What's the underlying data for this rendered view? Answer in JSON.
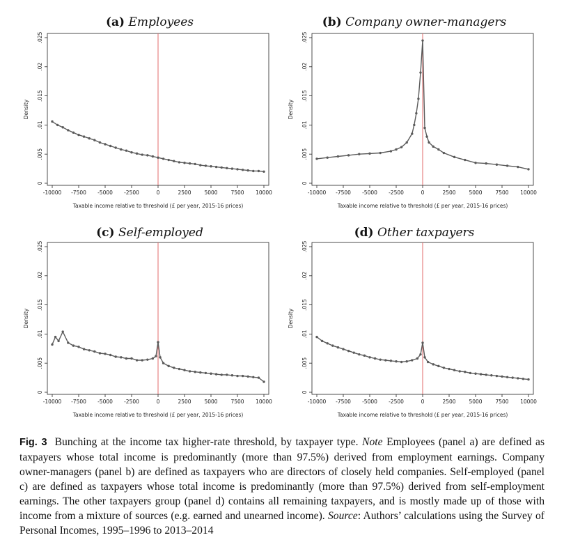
{
  "panels": [
    {
      "letter": "(a)",
      "name": "Employees"
    },
    {
      "letter": "(b)",
      "name": "Company owner-managers"
    },
    {
      "letter": "(c)",
      "name": "Self-employed"
    },
    {
      "letter": "(d)",
      "name": "Other taxpayers"
    }
  ],
  "caption": {
    "fig_label": "Fig. 3",
    "text1": "Bunching at the income tax higher-rate threshold, by taxpayer type.",
    "note_label": "Note",
    "text2": "Employees (panel a) are defined as taxpayers whose total income is predominantly (more than 97.5%) derived from employment earnings. Company owner-managers (panel b) are defined as taxpayers who are directors of closely held companies. Self-employed (panel c) are defined as taxpayers whose total income is predominantly (more than 97.5%) derived from self-employment earnings. The other taxpayers group (panel d) contains all remaining taxpayers, and is mostly made up of those with income from a mixture of sources (e.g. earned and unearned income).",
    "source_label": "Source",
    "text3": ": Authors’ calculations using the Survey of Personal Incomes, 1995–1996 to 2013–2014"
  },
  "colors": {
    "series": "#5a5a5a",
    "threshold": "#e06a6a",
    "frame": "#222222"
  },
  "chart_data": [
    {
      "type": "line",
      "title": "(a) Employees",
      "xlabel": "Taxable income relative to threshold (£ per year, 2015-16 prices)",
      "ylabel": "Density",
      "xlim": [
        -10000,
        10000
      ],
      "ylim": [
        0,
        0.025
      ],
      "xticks": [
        -10000,
        -7500,
        -5000,
        -2500,
        0,
        2500,
        5000,
        7500,
        10000
      ],
      "yticks": [
        0,
        0.005,
        0.01,
        0.015,
        0.02,
        0.025
      ],
      "ytick_labels": [
        "0",
        ".005",
        ".01",
        ".015",
        ".02",
        ".025"
      ],
      "threshold_x": 0,
      "series": [
        {
          "x": [
            -10000,
            -9500,
            -9000,
            -8500,
            -8000,
            -7500,
            -7000,
            -6500,
            -6000,
            -5500,
            -5000,
            -4500,
            -4000,
            -3500,
            -3000,
            -2500,
            -2000,
            -1500,
            -1000,
            -500,
            0,
            500,
            1000,
            1500,
            2000,
            2500,
            3000,
            3500,
            4000,
            4500,
            5000,
            5500,
            6000,
            6500,
            7000,
            7500,
            8000,
            8500,
            9000,
            9500,
            10000
          ],
          "y": [
            0.0106,
            0.01,
            0.0096,
            0.0091,
            0.0087,
            0.0083,
            0.008,
            0.0077,
            0.0074,
            0.007,
            0.0067,
            0.0064,
            0.0061,
            0.0058,
            0.0056,
            0.0053,
            0.0051,
            0.0049,
            0.0048,
            0.0046,
            0.0044,
            0.0042,
            0.004,
            0.0038,
            0.0036,
            0.0035,
            0.0034,
            0.0033,
            0.0031,
            0.003,
            0.0029,
            0.0028,
            0.0027,
            0.0026,
            0.0025,
            0.0024,
            0.0023,
            0.0022,
            0.0021,
            0.0021,
            0.002
          ]
        }
      ]
    },
    {
      "type": "line",
      "title": "(b) Company owner-managers",
      "xlabel": "Taxable income relative to threshold (£ per year, 2015-16 prices)",
      "ylabel": "Density",
      "xlim": [
        -10000,
        10000
      ],
      "ylim": [
        0,
        0.025
      ],
      "xticks": [
        -10000,
        -7500,
        -5000,
        -2500,
        0,
        2500,
        5000,
        7500,
        10000
      ],
      "yticks": [
        0,
        0.005,
        0.01,
        0.015,
        0.02,
        0.025
      ],
      "ytick_labels": [
        "0",
        ".005",
        ".01",
        ".015",
        ".02",
        ".025"
      ],
      "threshold_x": 0,
      "series": [
        {
          "x": [
            -10000,
            -9000,
            -8000,
            -7000,
            -6000,
            -5000,
            -4000,
            -3000,
            -2500,
            -2000,
            -1500,
            -1000,
            -800,
            -600,
            -400,
            -200,
            0,
            200,
            400,
            600,
            1000,
            1500,
            2000,
            3000,
            4000,
            5000,
            6000,
            7000,
            8000,
            9000,
            10000
          ],
          "y": [
            0.0042,
            0.0044,
            0.0046,
            0.0048,
            0.005,
            0.0051,
            0.0052,
            0.0055,
            0.0058,
            0.0062,
            0.007,
            0.0085,
            0.01,
            0.012,
            0.0145,
            0.019,
            0.0245,
            0.0095,
            0.008,
            0.007,
            0.0063,
            0.0058,
            0.0052,
            0.0045,
            0.004,
            0.0035,
            0.0034,
            0.0032,
            0.003,
            0.0028,
            0.0024
          ]
        }
      ]
    },
    {
      "type": "line",
      "title": "(c) Self-employed",
      "xlabel": "Taxable income relative to threshold (£ per year, 2015-16 prices)",
      "ylabel": "Density",
      "xlim": [
        -10000,
        10000
      ],
      "ylim": [
        0,
        0.025
      ],
      "xticks": [
        -10000,
        -7500,
        -5000,
        -2500,
        0,
        2500,
        5000,
        7500,
        10000
      ],
      "yticks": [
        0,
        0.005,
        0.01,
        0.015,
        0.02,
        0.025
      ],
      "ytick_labels": [
        "0",
        ".005",
        ".01",
        ".015",
        ".02",
        ".025"
      ],
      "threshold_x": 0,
      "series": [
        {
          "x": [
            -10000,
            -9700,
            -9400,
            -9000,
            -8500,
            -8000,
            -7500,
            -7000,
            -6500,
            -6000,
            -5500,
            -5000,
            -4500,
            -4000,
            -3500,
            -3000,
            -2500,
            -2000,
            -1500,
            -1000,
            -500,
            -200,
            0,
            200,
            500,
            1000,
            1500,
            2000,
            2500,
            3000,
            3500,
            4000,
            4500,
            5000,
            5500,
            6000,
            6500,
            7000,
            7500,
            8000,
            8500,
            9000,
            9500,
            10000
          ],
          "y": [
            0.0082,
            0.0095,
            0.0088,
            0.0104,
            0.0085,
            0.008,
            0.0078,
            0.0074,
            0.0072,
            0.007,
            0.0067,
            0.0066,
            0.0064,
            0.0061,
            0.006,
            0.0058,
            0.0058,
            0.0055,
            0.0055,
            0.0056,
            0.0058,
            0.0062,
            0.0086,
            0.006,
            0.005,
            0.0045,
            0.0042,
            0.004,
            0.0038,
            0.0036,
            0.0035,
            0.0034,
            0.0033,
            0.0032,
            0.0031,
            0.003,
            0.003,
            0.0029,
            0.0028,
            0.0028,
            0.0027,
            0.0026,
            0.0025,
            0.0018
          ]
        }
      ]
    },
    {
      "type": "line",
      "title": "(d) Other taxpayers",
      "xlabel": "Taxable income relative to threshold (£ per year, 2015-16 prices)",
      "ylabel": "Density",
      "xlim": [
        -10000,
        10000
      ],
      "ylim": [
        0,
        0.025
      ],
      "xticks": [
        -10000,
        -7500,
        -5000,
        -2500,
        0,
        2500,
        5000,
        7500,
        10000
      ],
      "yticks": [
        0,
        0.005,
        0.01,
        0.015,
        0.02,
        0.025
      ],
      "ytick_labels": [
        "0",
        ".005",
        ".01",
        ".015",
        ".02",
        ".025"
      ],
      "threshold_x": 0,
      "series": [
        {
          "x": [
            -10000,
            -9500,
            -9000,
            -8500,
            -8000,
            -7500,
            -7000,
            -6500,
            -6000,
            -5500,
            -5000,
            -4500,
            -4000,
            -3500,
            -3000,
            -2500,
            -2000,
            -1500,
            -1000,
            -500,
            -200,
            0,
            200,
            500,
            1000,
            1500,
            2000,
            2500,
            3000,
            3500,
            4000,
            4500,
            5000,
            5500,
            6000,
            6500,
            7000,
            7500,
            8000,
            8500,
            9000,
            9500,
            10000
          ],
          "y": [
            0.0095,
            0.0088,
            0.0084,
            0.008,
            0.0077,
            0.0074,
            0.0071,
            0.0068,
            0.0065,
            0.0063,
            0.006,
            0.0058,
            0.0056,
            0.0055,
            0.0054,
            0.0053,
            0.0052,
            0.0053,
            0.0055,
            0.0058,
            0.0065,
            0.0085,
            0.006,
            0.0052,
            0.0048,
            0.0045,
            0.0042,
            0.004,
            0.0038,
            0.0036,
            0.0035,
            0.0033,
            0.0032,
            0.0031,
            0.003,
            0.0029,
            0.0028,
            0.0027,
            0.0026,
            0.0025,
            0.0024,
            0.0023,
            0.0022
          ]
        }
      ]
    }
  ]
}
